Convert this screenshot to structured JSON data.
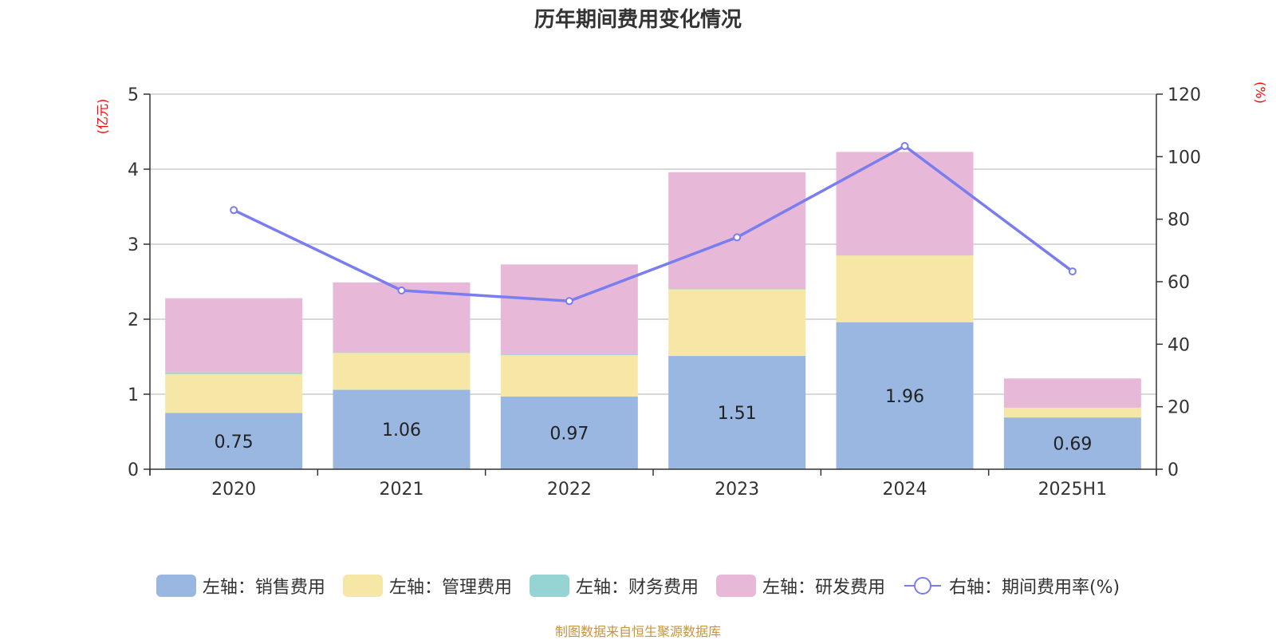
{
  "chart_data": {
    "type": "bar",
    "title": "历年期间费用变化情况",
    "categories": [
      "2020",
      "2021",
      "2022",
      "2023",
      "2024",
      "2025H1"
    ],
    "left_axis": {
      "unit": "(亿元)",
      "ylim": [
        0,
        5
      ],
      "ticks": [
        "0",
        "1",
        "2",
        "3",
        "4",
        "5"
      ]
    },
    "right_axis": {
      "unit": "(%)",
      "ylim": [
        0,
        120
      ],
      "ticks": [
        "0",
        "20",
        "40",
        "60",
        "80",
        "100",
        "120"
      ]
    },
    "series": [
      {
        "name": "左轴：销售费用",
        "type": "bar",
        "stack": "left",
        "color": "#9ab7e1",
        "values": [
          0.75,
          1.06,
          0.97,
          1.51,
          1.96,
          0.69
        ],
        "labels": [
          "0.75",
          "1.06",
          "0.97",
          "1.51",
          "1.96",
          "0.69"
        ]
      },
      {
        "name": "左轴：管理费用",
        "type": "bar",
        "stack": "left",
        "color": "#f7e7a6",
        "values": [
          0.52,
          0.49,
          0.55,
          0.89,
          0.89,
          0.13
        ]
      },
      {
        "name": "左轴：财务费用",
        "type": "bar",
        "stack": "left",
        "color": "#96d3d3",
        "values": [
          0.02,
          0.01,
          0.01,
          0.01,
          0.01,
          0.0
        ]
      },
      {
        "name": "左轴：研发费用",
        "type": "bar",
        "stack": "left",
        "color": "#e7b8d8",
        "values": [
          0.99,
          0.93,
          1.2,
          1.55,
          1.37,
          0.39
        ]
      },
      {
        "name": "右轴：期间费用率(%)",
        "type": "line",
        "axis": "right",
        "color": "#7a7df0",
        "values": [
          82.9,
          57.2,
          53.8,
          74.2,
          103.4,
          63.3
        ]
      }
    ]
  },
  "footer": "制图数据来自恒生聚源数据库"
}
